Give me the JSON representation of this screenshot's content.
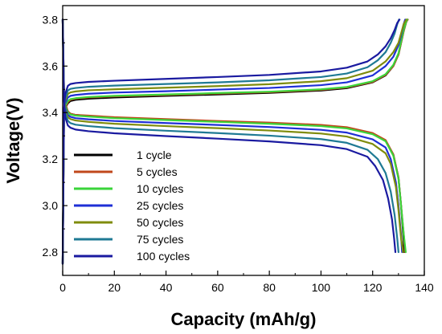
{
  "chart_data": {
    "type": "line",
    "title": "",
    "xlabel": "Capacity (mAh/g)",
    "ylabel": "Voltage(V)",
    "xlim": [
      0,
      140
    ],
    "ylim": [
      2.7,
      3.86
    ],
    "xticks": [
      0,
      20,
      40,
      60,
      80,
      100,
      120,
      140
    ],
    "yticks": [
      2.8,
      3.0,
      3.2,
      3.4,
      3.6,
      3.8
    ],
    "xtick_labels": [
      "0",
      "20",
      "40",
      "60",
      "80",
      "100",
      "120",
      "140"
    ],
    "ytick_labels": [
      "2.8",
      "3.0",
      "3.2",
      "3.4",
      "3.6",
      "3.8"
    ],
    "grid": false,
    "legend_position": "bottom-left",
    "series": [
      {
        "name": "1 cycle",
        "color": "#000000",
        "charge": {
          "x": [
            0,
            0.5,
            1,
            2,
            3,
            5,
            10,
            20,
            40,
            60,
            80,
            100,
            110,
            120,
            125,
            128,
            130,
            131,
            132,
            133,
            133.5
          ],
          "y": [
            2.75,
            3.36,
            3.42,
            3.44,
            3.45,
            3.455,
            3.46,
            3.465,
            3.472,
            3.478,
            3.485,
            3.495,
            3.505,
            3.53,
            3.56,
            3.6,
            3.65,
            3.7,
            3.75,
            3.79,
            3.8
          ]
        },
        "discharge": {
          "x": [
            0,
            0.5,
            1,
            2,
            3,
            5,
            10,
            20,
            40,
            60,
            80,
            100,
            110,
            120,
            125,
            128,
            130,
            131,
            132,
            132.2
          ],
          "y": [
            3.8,
            3.5,
            3.44,
            3.405,
            3.395,
            3.39,
            3.385,
            3.378,
            3.37,
            3.362,
            3.355,
            3.345,
            3.335,
            3.31,
            3.28,
            3.22,
            3.12,
            3.0,
            2.85,
            2.8
          ]
        }
      },
      {
        "name": "5 cycles",
        "color": "#c0471b",
        "charge": {
          "x": [
            0,
            0.5,
            1,
            2,
            3,
            5,
            10,
            20,
            40,
            60,
            80,
            100,
            110,
            120,
            125,
            128,
            130,
            131,
            132,
            133,
            133.6
          ],
          "y": [
            2.75,
            3.36,
            3.42,
            3.445,
            3.455,
            3.46,
            3.465,
            3.47,
            3.476,
            3.482,
            3.488,
            3.498,
            3.508,
            3.532,
            3.562,
            3.6,
            3.65,
            3.7,
            3.75,
            3.79,
            3.8
          ]
        },
        "discharge": {
          "x": [
            0,
            0.5,
            1,
            2,
            3,
            5,
            10,
            20,
            40,
            60,
            80,
            100,
            110,
            120,
            125,
            128,
            130,
            131,
            132,
            132.6
          ],
          "y": [
            3.8,
            3.5,
            3.44,
            3.405,
            3.395,
            3.39,
            3.387,
            3.38,
            3.372,
            3.364,
            3.357,
            3.347,
            3.337,
            3.312,
            3.282,
            3.22,
            3.12,
            3.0,
            2.88,
            2.8
          ]
        }
      },
      {
        "name": "10 cycles",
        "color": "#3ad43a",
        "charge": {
          "x": [
            0,
            0.5,
            1,
            2,
            3,
            5,
            10,
            20,
            40,
            60,
            80,
            100,
            110,
            120,
            125,
            128,
            130,
            131,
            132,
            133,
            133.4
          ],
          "y": [
            2.75,
            3.37,
            3.43,
            3.45,
            3.458,
            3.462,
            3.467,
            3.472,
            3.478,
            3.484,
            3.49,
            3.5,
            3.51,
            3.535,
            3.565,
            3.605,
            3.655,
            3.705,
            3.755,
            3.792,
            3.8
          ]
        },
        "discharge": {
          "x": [
            0,
            0.5,
            1,
            2,
            3,
            5,
            10,
            20,
            40,
            60,
            80,
            100,
            110,
            120,
            125,
            128,
            130,
            131,
            132,
            132.8
          ],
          "y": [
            3.8,
            3.49,
            3.43,
            3.4,
            3.392,
            3.387,
            3.383,
            3.376,
            3.368,
            3.36,
            3.352,
            3.342,
            3.332,
            3.307,
            3.277,
            3.215,
            3.115,
            3.0,
            2.88,
            2.8
          ]
        }
      },
      {
        "name": "25 cycles",
        "color": "#1e2fd6",
        "charge": {
          "x": [
            0,
            0.5,
            1,
            2,
            3,
            5,
            10,
            20,
            40,
            60,
            80,
            100,
            110,
            120,
            125,
            128,
            130,
            131,
            132,
            132.6
          ],
          "y": [
            2.75,
            3.38,
            3.44,
            3.465,
            3.472,
            3.476,
            3.481,
            3.486,
            3.492,
            3.499,
            3.506,
            3.518,
            3.53,
            3.56,
            3.6,
            3.64,
            3.69,
            3.73,
            3.78,
            3.8
          ]
        },
        "discharge": {
          "x": [
            0,
            0.5,
            1,
            2,
            3,
            5,
            10,
            20,
            40,
            60,
            80,
            100,
            110,
            120,
            125,
            127,
            129,
            130,
            131,
            131.4
          ],
          "y": [
            3.8,
            3.48,
            3.42,
            3.39,
            3.382,
            3.376,
            3.371,
            3.364,
            3.355,
            3.347,
            3.338,
            3.326,
            3.314,
            3.285,
            3.25,
            3.2,
            3.1,
            3.0,
            2.87,
            2.8
          ]
        }
      },
      {
        "name": "50 cycles",
        "color": "#7f8c0d",
        "charge": {
          "x": [
            0,
            0.5,
            1,
            2,
            3,
            5,
            10,
            20,
            40,
            60,
            80,
            100,
            110,
            120,
            125,
            128,
            130,
            131,
            132,
            133
          ],
          "y": [
            2.75,
            3.39,
            3.45,
            3.48,
            3.487,
            3.491,
            3.496,
            3.5,
            3.507,
            3.514,
            3.522,
            3.535,
            3.548,
            3.58,
            3.62,
            3.66,
            3.7,
            3.74,
            3.78,
            3.8
          ]
        },
        "discharge": {
          "x": [
            0,
            0.5,
            1,
            2,
            3,
            5,
            10,
            20,
            40,
            60,
            80,
            100,
            110,
            120,
            125,
            127,
            129,
            130,
            131,
            131.8
          ],
          "y": [
            3.8,
            3.47,
            3.41,
            3.38,
            3.372,
            3.366,
            3.36,
            3.352,
            3.342,
            3.333,
            3.323,
            3.31,
            3.297,
            3.265,
            3.225,
            3.18,
            3.08,
            2.98,
            2.86,
            2.8
          ]
        }
      },
      {
        "name": "75 cycles",
        "color": "#1f7a94",
        "charge": {
          "x": [
            0,
            0.5,
            1,
            2,
            3,
            5,
            10,
            20,
            40,
            60,
            80,
            100,
            110,
            118,
            122,
            125,
            127,
            128.5,
            129.5,
            130.2
          ],
          "y": [
            2.75,
            3.4,
            3.46,
            3.495,
            3.502,
            3.506,
            3.511,
            3.516,
            3.523,
            3.53,
            3.539,
            3.553,
            3.568,
            3.595,
            3.625,
            3.66,
            3.7,
            3.74,
            3.78,
            3.8
          ]
        },
        "discharge": {
          "x": [
            0,
            0.5,
            1,
            2,
            3,
            5,
            10,
            20,
            40,
            60,
            80,
            100,
            110,
            118,
            122,
            125,
            127,
            128.5,
            129.5,
            130
          ],
          "y": [
            3.8,
            3.46,
            3.4,
            3.365,
            3.355,
            3.348,
            3.342,
            3.333,
            3.322,
            3.312,
            3.301,
            3.286,
            3.27,
            3.24,
            3.2,
            3.14,
            3.06,
            2.96,
            2.86,
            2.8
          ]
        }
      },
      {
        "name": "100 cycles",
        "color": "#1a1aa0",
        "charge": {
          "x": [
            0,
            0.5,
            1,
            2,
            3,
            5,
            10,
            20,
            40,
            60,
            80,
            100,
            110,
            118,
            122,
            125,
            127,
            128.5,
            129.5,
            130.4
          ],
          "y": [
            2.75,
            3.42,
            3.48,
            3.515,
            3.523,
            3.527,
            3.532,
            3.537,
            3.545,
            3.553,
            3.562,
            3.577,
            3.593,
            3.62,
            3.65,
            3.685,
            3.72,
            3.755,
            3.785,
            3.8
          ]
        },
        "discharge": {
          "x": [
            0,
            0.5,
            1,
            2,
            3,
            5,
            10,
            20,
            40,
            60,
            80,
            100,
            110,
            118,
            121,
            124,
            126,
            127.5,
            128.3,
            128.8
          ],
          "y": [
            3.8,
            3.45,
            3.38,
            3.345,
            3.335,
            3.327,
            3.32,
            3.311,
            3.299,
            3.288,
            3.276,
            3.26,
            3.243,
            3.21,
            3.17,
            3.11,
            3.03,
            2.94,
            2.86,
            2.8
          ]
        }
      }
    ]
  }
}
